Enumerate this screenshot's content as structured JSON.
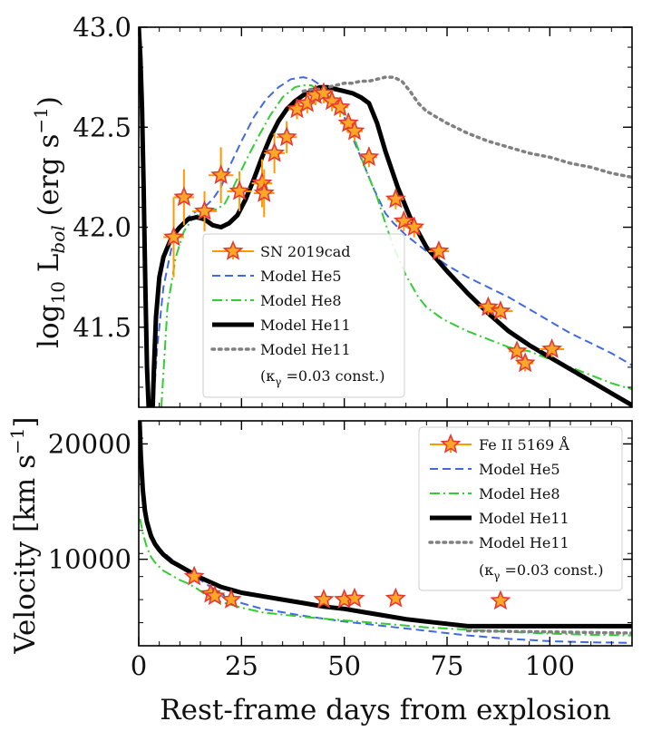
{
  "chart_data": [
    {
      "type": "line",
      "panel": "top",
      "ylabel": "log10 L_bol (erg s^-1)",
      "ylabel_parts": {
        "pre": "log",
        "sub": "10",
        "mid": " L",
        "sub2": "bol",
        "paren": " (erg s",
        "sup": "−1",
        "close": ")"
      },
      "xlim": [
        0,
        120
      ],
      "ylim": [
        41.1,
        43.0
      ],
      "y_ticks": [
        41.5,
        42.0,
        42.5,
        43.0
      ],
      "y_tick_labels": [
        "41.5",
        "42.0",
        "42.5",
        "43.0"
      ],
      "grid": false,
      "legend_position": "lower-center",
      "legend": [
        {
          "label": "SN 2019cad",
          "style": "star"
        },
        {
          "label": "Model He5",
          "style": "dashed",
          "color": "#4169e1"
        },
        {
          "label": "Model He8",
          "style": "dashdot",
          "color": "#32cd32"
        },
        {
          "label": "Model He11",
          "style": "solid",
          "color": "#000000"
        },
        {
          "label": "Model He11",
          "style": "dotted",
          "color": "#808080"
        }
      ],
      "legend_note": {
        "pre": "(κ",
        "sub": "γ",
        "post": " =0.03 const.)"
      },
      "observations": {
        "name": "SN 2019cad",
        "points": [
          {
            "x": 8.5,
            "y": 41.95,
            "xerr": 2.5,
            "yerr": 0.2
          },
          {
            "x": 11.0,
            "y": 42.15,
            "xerr": 2.5,
            "yerr": 0.14
          },
          {
            "x": 16.0,
            "y": 42.08,
            "xerr": 3.0,
            "yerr": 0.1
          },
          {
            "x": 20.0,
            "y": 42.26,
            "xerr": 3.0,
            "yerr": 0.14
          },
          {
            "x": 24.5,
            "y": 42.18,
            "xerr": 3.0,
            "yerr": 0.1
          },
          {
            "x": 30.0,
            "y": 42.22,
            "xerr": 2.5,
            "yerr": 0.12
          },
          {
            "x": 30.5,
            "y": 42.17,
            "xerr": 2.5,
            "yerr": 0.12
          },
          {
            "x": 33.0,
            "y": 42.37,
            "xerr": 2.5,
            "yerr": 0.1
          },
          {
            "x": 36.0,
            "y": 42.45,
            "xerr": 2.5,
            "yerr": 0.08
          },
          {
            "x": 38.5,
            "y": 42.59,
            "xerr": 2.0,
            "yerr": 0.05
          },
          {
            "x": 41.0,
            "y": 42.62,
            "xerr": 2.0,
            "yerr": 0.05
          },
          {
            "x": 43.0,
            "y": 42.66,
            "xerr": 2.0,
            "yerr": 0.05
          },
          {
            "x": 45.0,
            "y": 42.67,
            "xerr": 2.0,
            "yerr": 0.05
          },
          {
            "x": 47.0,
            "y": 42.63,
            "xerr": 2.0,
            "yerr": 0.05
          },
          {
            "x": 49.0,
            "y": 42.6,
            "xerr": 2.0,
            "yerr": 0.05
          },
          {
            "x": 51.0,
            "y": 42.52,
            "xerr": 2.0,
            "yerr": 0.05
          },
          {
            "x": 52.5,
            "y": 42.48,
            "xerr": 2.0,
            "yerr": 0.05
          },
          {
            "x": 56.0,
            "y": 42.35,
            "xerr": 2.0,
            "yerr": 0.05
          },
          {
            "x": 62.5,
            "y": 42.14,
            "xerr": 2.0,
            "yerr": 0.05
          },
          {
            "x": 64.5,
            "y": 42.03,
            "xerr": 2.0,
            "yerr": 0.05
          },
          {
            "x": 67.0,
            "y": 42.0,
            "xerr": 2.0,
            "yerr": 0.05
          },
          {
            "x": 73.0,
            "y": 41.88,
            "xerr": 2.5,
            "yerr": 0.04
          },
          {
            "x": 85.0,
            "y": 41.6,
            "xerr": 2.5,
            "yerr": 0.04
          },
          {
            "x": 88.0,
            "y": 41.58,
            "xerr": 3.0,
            "yerr": 0.04
          },
          {
            "x": 92.0,
            "y": 41.38,
            "xerr": 2.0,
            "yerr": 0.04
          },
          {
            "x": 94.0,
            "y": 41.32,
            "xerr": 2.0,
            "yerr": 0.04
          },
          {
            "x": 100.5,
            "y": 41.39,
            "xerr": 3.0,
            "yerr": 0.04
          }
        ]
      },
      "series": [
        {
          "name": "Model He5",
          "style": "dashed",
          "color": "#4169e1",
          "x": [
            3.5,
            4.5,
            6,
            8,
            10,
            12,
            14,
            16,
            18,
            20,
            22,
            25,
            28,
            31,
            34,
            37,
            40,
            42,
            45,
            48,
            50,
            52,
            54,
            57,
            60,
            62,
            65,
            70,
            75,
            80,
            85,
            90,
            95,
            100,
            105,
            110,
            115,
            120
          ],
          "y": [
            41.1,
            41.4,
            41.7,
            41.9,
            42.0,
            42.05,
            42.08,
            42.1,
            42.14,
            42.2,
            42.3,
            42.43,
            42.55,
            42.64,
            42.7,
            42.74,
            42.75,
            42.74,
            42.7,
            42.62,
            42.55,
            42.45,
            42.35,
            42.2,
            42.07,
            42.02,
            41.96,
            41.88,
            41.81,
            41.75,
            41.7,
            41.65,
            41.59,
            41.53,
            41.47,
            41.42,
            41.37,
            41.31
          ]
        },
        {
          "name": "Model He8",
          "style": "dashdot",
          "color": "#32cd32",
          "x": [
            5.5,
            7,
            9,
            11,
            13,
            15,
            17,
            19,
            21,
            23,
            26,
            29,
            32,
            35,
            38,
            40,
            42,
            44,
            46,
            48,
            50,
            52,
            55,
            58,
            60,
            62,
            65,
            68,
            70,
            74,
            80,
            85,
            90,
            95,
            100,
            105,
            110,
            115,
            120
          ],
          "y": [
            41.1,
            41.6,
            41.85,
            41.98,
            42.04,
            42.07,
            42.08,
            42.09,
            42.12,
            42.2,
            42.33,
            42.45,
            42.56,
            42.65,
            42.7,
            42.71,
            42.71,
            42.68,
            42.66,
            42.62,
            42.56,
            42.47,
            42.3,
            42.15,
            42.02,
            41.9,
            41.76,
            41.65,
            41.6,
            41.54,
            41.48,
            41.44,
            41.4,
            41.38,
            41.34,
            41.3,
            41.26,
            41.22,
            41.19
          ]
        },
        {
          "name": "Model He11",
          "style": "solid",
          "color": "#000000",
          "x": [
            0.0,
            0.4,
            0.8,
            1.2,
            1.6,
            2.0,
            2.4,
            2.8,
            3.0,
            3.4,
            3.7,
            4.2,
            5,
            6,
            8,
            10,
            12,
            14,
            16,
            18,
            20,
            22,
            24,
            26,
            28,
            30,
            32,
            34,
            36,
            38,
            40,
            42,
            44,
            46,
            48,
            50,
            52,
            54,
            56,
            58,
            60,
            63,
            66,
            70,
            75,
            80,
            85,
            90,
            95,
            100,
            105,
            110,
            115,
            120
          ],
          "y": [
            43.0,
            42.85,
            42.6,
            42.2,
            41.7,
            41.3,
            41.1,
            41.1,
            41.1,
            41.1,
            41.3,
            41.55,
            41.75,
            41.85,
            41.95,
            42.0,
            42.04,
            42.05,
            42.04,
            42.01,
            42.0,
            42.02,
            42.06,
            42.14,
            42.24,
            42.35,
            42.45,
            42.53,
            42.59,
            42.63,
            42.66,
            42.68,
            42.7,
            42.7,
            42.69,
            42.68,
            42.67,
            42.65,
            42.62,
            42.52,
            42.38,
            42.2,
            42.05,
            41.9,
            41.78,
            41.67,
            41.57,
            41.48,
            41.41,
            41.35,
            41.29,
            41.23,
            41.17,
            41.11
          ]
        },
        {
          "name": "Model He11 (κγ =0.03 const.)",
          "style": "dotted",
          "color": "#808080",
          "x": [
            40,
            42,
            44,
            46,
            48,
            50,
            52,
            54,
            56,
            58,
            60,
            62,
            64,
            66,
            68,
            70,
            75,
            80,
            85,
            90,
            95,
            100,
            105,
            110,
            115,
            120
          ],
          "y": [
            42.68,
            42.69,
            42.69,
            42.7,
            42.71,
            42.72,
            42.72,
            42.73,
            42.73,
            42.74,
            42.75,
            42.75,
            42.73,
            42.68,
            42.62,
            42.58,
            42.52,
            42.47,
            42.43,
            42.4,
            42.37,
            42.35,
            42.32,
            42.3,
            42.27,
            42.25
          ]
        }
      ]
    },
    {
      "type": "line",
      "panel": "bottom",
      "ylabel_parts": {
        "pre": "Velocity [km s",
        "sup": "−1",
        "post": "]"
      },
      "xlabel": "Rest-frame days from explosion",
      "xlim": [
        0,
        120
      ],
      "ylim": [
        2500,
        22000
      ],
      "x_ticks": [
        0,
        25,
        50,
        75,
        100
      ],
      "x_tick_labels": [
        "0",
        "25",
        "50",
        "75",
        "100"
      ],
      "y_ticks": [
        10000,
        20000
      ],
      "y_tick_labels": [
        "10000",
        "20000"
      ],
      "grid": false,
      "legend_position": "upper-right",
      "legend": [
        {
          "label": "Fe II 5169 Å",
          "style": "star"
        },
        {
          "label": "Model He5",
          "style": "dashed",
          "color": "#4169e1"
        },
        {
          "label": "Model He8",
          "style": "dashdot",
          "color": "#32cd32"
        },
        {
          "label": "Model He11",
          "style": "solid",
          "color": "#000000"
        },
        {
          "label": "Model He11",
          "style": "dotted",
          "color": "#808080"
        }
      ],
      "legend_note": {
        "pre": "(κ",
        "sub": "γ",
        "post": " =0.03 const.)"
      },
      "observations": {
        "name": "Fe II 5169 Å",
        "points": [
          {
            "x": 13.5,
            "y": 8500
          },
          {
            "x": 17.5,
            "y": 7000
          },
          {
            "x": 18.5,
            "y": 6800
          },
          {
            "x": 22.5,
            "y": 6500
          },
          {
            "x": 45.0,
            "y": 6500
          },
          {
            "x": 50.0,
            "y": 6500
          },
          {
            "x": 52.5,
            "y": 6600
          },
          {
            "x": 62.5,
            "y": 6600
          },
          {
            "x": 88.0,
            "y": 6400
          }
        ]
      },
      "series": [
        {
          "name": "Model He5",
          "style": "dashed",
          "color": "#4169e1",
          "x": [
            0.2,
            0.5,
            1,
            1.5,
            2,
            3,
            4,
            5,
            6,
            8,
            10,
            12,
            15,
            20,
            25,
            30,
            40,
            50,
            60,
            70,
            80,
            90,
            100,
            110,
            120
          ],
          "y": [
            22000,
            20000,
            17000,
            15000,
            13800,
            12300,
            11500,
            11000,
            10600,
            10000,
            9500,
            9000,
            8200,
            7000,
            6200,
            5700,
            5100,
            4600,
            4200,
            3800,
            3400,
            3100,
            2900,
            2800,
            2750
          ]
        },
        {
          "name": "Model He8",
          "style": "dashdot",
          "color": "#32cd32",
          "x": [
            0.3,
            1,
            2,
            3,
            4,
            6,
            8,
            10,
            12,
            14,
            16,
            18,
            20,
            25,
            30,
            40,
            50,
            60,
            70,
            80,
            90,
            100,
            110,
            120
          ],
          "y": [
            13500,
            12300,
            11000,
            10200,
            9700,
            9000,
            8600,
            8200,
            7900,
            7500,
            7000,
            6600,
            6300,
            5800,
            5400,
            5000,
            4700,
            4400,
            4100,
            3900,
            3700,
            3550,
            3450,
            3400
          ]
        },
        {
          "name": "Model He11",
          "style": "solid",
          "color": "#000000",
          "x": [
            0.2,
            0.5,
            1,
            1.5,
            2,
            3,
            4,
            5,
            6,
            8,
            10,
            12,
            15,
            20,
            25,
            30,
            35,
            40,
            45,
            50,
            55,
            60,
            65,
            70,
            75,
            80,
            90,
            100,
            110,
            120
          ],
          "y": [
            22000,
            19000,
            16000,
            14200,
            13200,
            12000,
            11300,
            10800,
            10400,
            9800,
            9400,
            9000,
            8400,
            7600,
            7100,
            6800,
            6500,
            6200,
            5900,
            5700,
            5400,
            5100,
            4800,
            4600,
            4400,
            4200,
            4200,
            4200,
            4200,
            4200
          ]
        },
        {
          "name": "Model He11 (κγ =0.03 const.)",
          "style": "dotted",
          "color": "#808080",
          "x": [
            80,
            90,
            100,
            110,
            120
          ],
          "y": [
            3800,
            3750,
            3700,
            3650,
            3600
          ]
        }
      ]
    }
  ]
}
